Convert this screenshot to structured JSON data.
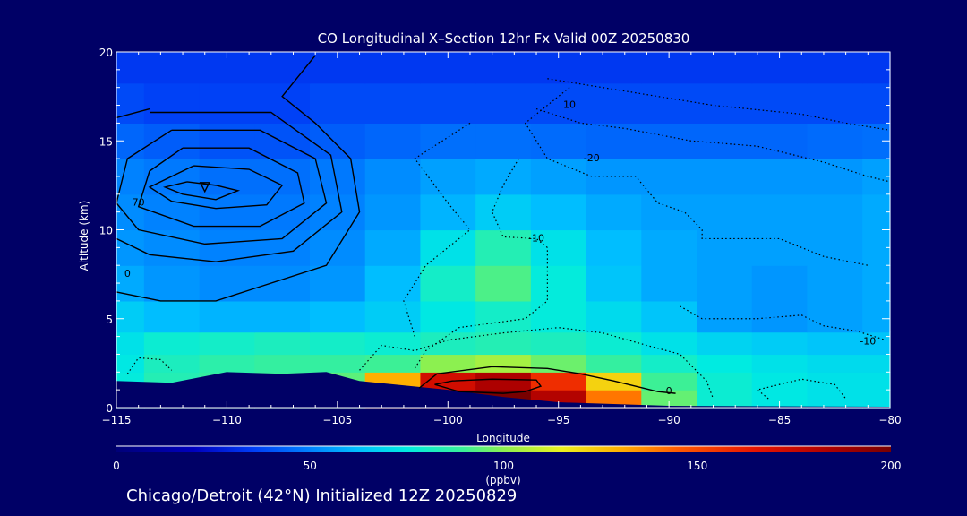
{
  "chart_data": {
    "type": "heatmap",
    "title": "CO Longitudinal X–Section 12hr  Fx Valid 00Z 20250830",
    "xlabel": "Longitude",
    "ylabel": "Altitude (km)",
    "xlim": [
      -115,
      -80
    ],
    "ylim": [
      0,
      20
    ],
    "xticks": [
      -115,
      -110,
      -105,
      -100,
      -95,
      -90,
      -85,
      -80
    ],
    "xtick_labels": [
      "−115",
      "−110",
      "−105",
      "−100",
      "−95",
      "−90",
      "−85",
      "−80"
    ],
    "yticks": [
      0,
      5,
      10,
      15,
      20
    ],
    "ytick_labels": [
      "0",
      "5",
      "10",
      "15",
      "20"
    ],
    "colorbar": {
      "min": 0,
      "max": 200,
      "unit": "(ppbv)",
      "ticks": [
        0,
        50,
        100,
        150,
        200
      ],
      "tick_labels": [
        "0",
        "50",
        "100",
        "150",
        "200"
      ]
    },
    "footer": "Chicago/Detroit (42°N) Initialized 12Z 20250829",
    "lon": [
      -115,
      -112.5,
      -110,
      -107.5,
      -105,
      -102.5,
      -100,
      -97.5,
      -95,
      -92.5,
      -90,
      -87.5,
      -85,
      -82.5,
      -80
    ],
    "alt": [
      0.5,
      1.5,
      2.5,
      3.5,
      5,
      7,
      9,
      11,
      13,
      15,
      17,
      19.5
    ],
    "co_ppbv": [
      [
        74,
        82,
        84,
        86,
        92,
        150,
        196,
        200,
        182,
        140,
        95,
        78,
        74,
        72,
        72
      ],
      [
        76,
        84,
        88,
        90,
        94,
        130,
        172,
        184,
        158,
        122,
        90,
        78,
        74,
        72,
        72
      ],
      [
        74,
        82,
        86,
        88,
        88,
        90,
        100,
        104,
        96,
        88,
        80,
        75,
        72,
        70,
        70
      ],
      [
        72,
        78,
        80,
        82,
        80,
        78,
        82,
        84,
        82,
        78,
        72,
        68,
        66,
        64,
        64
      ],
      [
        66,
        62,
        60,
        60,
        62,
        66,
        74,
        80,
        76,
        70,
        64,
        56,
        54,
        56,
        58
      ],
      [
        58,
        54,
        52,
        52,
        54,
        62,
        80,
        92,
        76,
        64,
        58,
        56,
        54,
        56,
        58
      ],
      [
        54,
        52,
        50,
        50,
        52,
        58,
        72,
        84,
        72,
        62,
        58,
        56,
        56,
        56,
        58
      ],
      [
        52,
        50,
        48,
        48,
        50,
        54,
        60,
        66,
        62,
        58,
        56,
        56,
        56,
        56,
        58
      ],
      [
        50,
        48,
        46,
        46,
        48,
        52,
        56,
        58,
        56,
        54,
        54,
        54,
        54,
        54,
        56
      ],
      [
        44,
        42,
        40,
        40,
        42,
        44,
        46,
        46,
        45,
        44,
        44,
        44,
        44,
        45,
        46
      ],
      [
        38,
        36,
        36,
        36,
        38,
        38,
        38,
        38,
        38,
        38,
        38,
        38,
        38,
        38,
        38
      ],
      [
        34,
        34,
        34,
        34,
        34,
        34,
        34,
        34,
        34,
        34,
        34,
        34,
        34,
        34,
        34
      ]
    ],
    "terrain_km": [
      [
        -115,
        1.5
      ],
      [
        -112.5,
        1.4
      ],
      [
        -110,
        2.0
      ],
      [
        -107.5,
        1.9
      ],
      [
        -105.5,
        2.0
      ],
      [
        -104,
        1.5
      ],
      [
        -100,
        1.0
      ],
      [
        -97.5,
        0.6
      ],
      [
        -95,
        0.3
      ],
      [
        -90,
        0.1
      ],
      [
        -80,
        0.05
      ]
    ],
    "contour_labels": [
      {
        "text": "70",
        "lon": -114,
        "alt": 11.5
      },
      {
        "text": "0",
        "lon": -114.5,
        "alt": 7.5
      },
      {
        "text": "-10",
        "lon": -96,
        "alt": 9.5
      },
      {
        "text": "-20",
        "lon": -93.5,
        "alt": 14
      },
      {
        "text": "10",
        "lon": -94.5,
        "alt": 17
      },
      {
        "text": "0",
        "lon": -90,
        "alt": 0.9
      },
      {
        "text": "-10",
        "lon": -81,
        "alt": 3.7
      }
    ]
  }
}
